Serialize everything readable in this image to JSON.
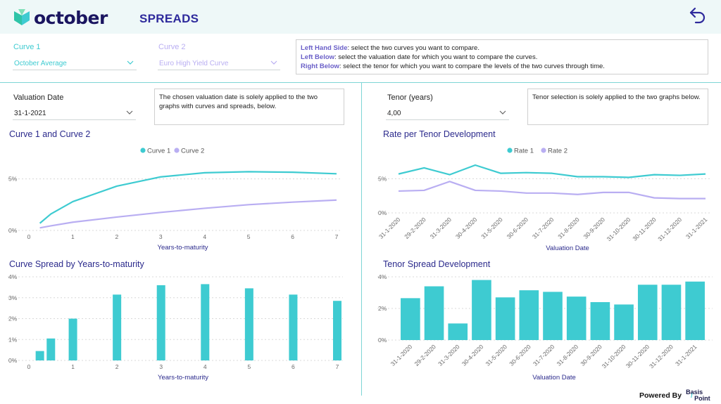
{
  "header": {
    "logo_text": "october",
    "page_title": "SPREADS"
  },
  "colors": {
    "teal": "#3ecbd1",
    "lavender": "#b9aef2",
    "navy": "#2b2a8c",
    "header_bg": "#eef8f8"
  },
  "curve1": {
    "label": "Curve 1",
    "value": "October Average"
  },
  "curve2": {
    "label": "Curve 2",
    "value": "Euro High Yield Curve"
  },
  "instructions": {
    "lines": [
      {
        "bold": "Left Hand Side",
        "text": ": select the two curves you want to compare."
      },
      {
        "bold": "Left Below",
        "text": ": select the valuation date for which you want to compare the curves."
      },
      {
        "bold": "Right Below",
        "text": ": select the tenor for which you want to compare the levels of the two curves through time."
      }
    ]
  },
  "valuation": {
    "label": "Valuation Date",
    "value": "31-1-2021",
    "info": "The chosen valuation date is solely applied to the two graphs with curves and spreads, below."
  },
  "tenor": {
    "label": "Tenor (years)",
    "value": "4,00",
    "info": "Tenor selection is solely applied to the two graphs below."
  },
  "chart_data": [
    {
      "id": "curves",
      "type": "line",
      "title": "Curve 1 and Curve 2",
      "xlabel": "Years-to-maturity",
      "ylabel": "",
      "xlim": [
        0,
        7
      ],
      "ylim": [
        0,
        6
      ],
      "x_ticks": [
        "0",
        "1",
        "2",
        "3",
        "4",
        "5",
        "6",
        "7"
      ],
      "y_ticks": [
        {
          "v": 0,
          "label": "0%"
        },
        {
          "v": 5,
          "label": "5%"
        }
      ],
      "legend": "top-center",
      "grid": true,
      "series": [
        {
          "name": "Curve 1",
          "color": "#3ecbd1",
          "x": [
            0.25,
            0.5,
            1,
            2,
            3,
            4,
            5,
            6,
            7
          ],
          "values": [
            0.7,
            1.6,
            2.8,
            4.3,
            5.2,
            5.6,
            5.7,
            5.65,
            5.5
          ]
        },
        {
          "name": "Curve 2",
          "color": "#b9aef2",
          "x": [
            0.25,
            0.5,
            1,
            2,
            3,
            4,
            5,
            6,
            7
          ],
          "values": [
            0.25,
            0.45,
            0.8,
            1.3,
            1.75,
            2.15,
            2.5,
            2.75,
            2.95
          ]
        }
      ]
    },
    {
      "id": "rates",
      "type": "line",
      "title": "Rate per Tenor Development",
      "xlabel": "Valuation Date",
      "ylabel": "",
      "ylim": [
        0,
        7
      ],
      "categories": [
        "31-1-2020",
        "29-2-2020",
        "31-3-2020",
        "30-4-2020",
        "31-5-2020",
        "30-6-2020",
        "31-7-2020",
        "31-8-2020",
        "30-9-2020",
        "31-10-2020",
        "30-11-2020",
        "31-12-2020",
        "31-1-2021"
      ],
      "y_ticks": [
        {
          "v": 0,
          "label": "0%"
        },
        {
          "v": 5,
          "label": "5%"
        }
      ],
      "legend": "top-center",
      "grid": true,
      "series": [
        {
          "name": "Rate 1",
          "color": "#3ecbd1",
          "values": [
            5.7,
            6.6,
            5.6,
            7.0,
            5.8,
            5.9,
            5.8,
            5.3,
            5.3,
            5.2,
            5.6,
            5.5,
            5.7
          ]
        },
        {
          "name": "Rate 2",
          "color": "#b9aef2",
          "values": [
            3.2,
            3.3,
            4.6,
            3.3,
            3.2,
            2.9,
            2.9,
            2.7,
            3.0,
            3.0,
            2.2,
            2.1,
            2.1
          ]
        }
      ]
    },
    {
      "id": "curve_spread",
      "type": "bar",
      "title": "Curve Spread by Years-to-maturity",
      "xlabel": "Years-to-maturity",
      "ylabel": "",
      "xlim": [
        0,
        7
      ],
      "ylim": [
        0,
        4
      ],
      "x_ticks": [
        "0",
        "1",
        "2",
        "3",
        "4",
        "5",
        "6",
        "7"
      ],
      "y_ticks": [
        {
          "v": 0,
          "label": "0%"
        },
        {
          "v": 1,
          "label": "1%"
        },
        {
          "v": 2,
          "label": "2%"
        },
        {
          "v": 3,
          "label": "3%"
        },
        {
          "v": 4,
          "label": "4%"
        }
      ],
      "grid": true,
      "color": "#3ecbd1",
      "x": [
        0.25,
        0.5,
        1,
        2,
        3,
        4,
        5,
        6,
        7
      ],
      "values": [
        0.45,
        1.05,
        2.0,
        3.15,
        3.6,
        3.65,
        3.45,
        3.15,
        2.85
      ]
    },
    {
      "id": "tenor_spread",
      "type": "bar",
      "title": "Tenor Spread Development",
      "xlabel": "Valuation Date",
      "ylabel": "",
      "ylim": [
        0,
        4
      ],
      "categories": [
        "31-1-2020",
        "29-2-2020",
        "31-3-2020",
        "30-4-2020",
        "31-5-2020",
        "30-6-2020",
        "31-7-2020",
        "31-8-2020",
        "30-9-2020",
        "31-10-2020",
        "30-11-2020",
        "31-12-2020",
        "31-1-2021"
      ],
      "y_ticks": [
        {
          "v": 0,
          "label": "0%"
        },
        {
          "v": 2,
          "label": "2%"
        },
        {
          "v": 4,
          "label": "4%"
        }
      ],
      "grid": true,
      "color": "#3ecbd1",
      "values": [
        2.65,
        3.4,
        1.05,
        3.8,
        2.7,
        3.15,
        3.05,
        2.75,
        2.4,
        2.25,
        3.5,
        3.5,
        3.7
      ]
    }
  ],
  "footer": {
    "powered_by": "Powered By",
    "brand_top": "Basis",
    "brand_bottom": "Point",
    "brand_slash": "/"
  }
}
